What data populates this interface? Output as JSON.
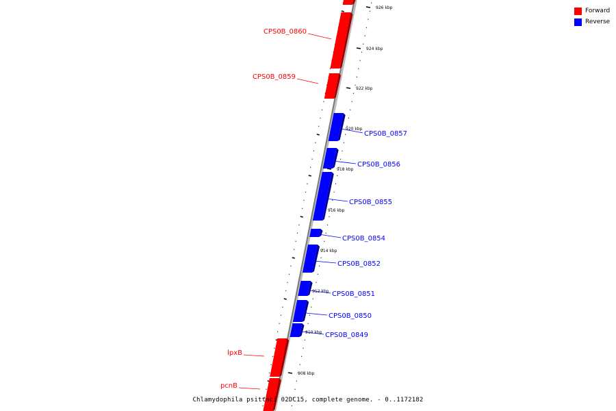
{
  "caption": "Chlamydophila psittaci 02DC15, complete genome. - 0..1172182",
  "legend": [
    {
      "label": "Forward",
      "color": "#ff0000"
    },
    {
      "label": "Reverse",
      "color": "#0000ff"
    }
  ],
  "scale_ticks": [
    "926 kbp",
    "924 kbp",
    "922 kbp",
    "920 kbp",
    "918 kbp",
    "916 kbp",
    "914 kbp",
    "912 kbp",
    "910 kbp",
    "908 kbp"
  ],
  "genes": [
    {
      "label": "",
      "strand": "forward"
    },
    {
      "label": "CPS0B_0860",
      "strand": "forward"
    },
    {
      "label": "CPS0B_0859",
      "strand": "forward"
    },
    {
      "label": "CPS0B_0857",
      "strand": "reverse"
    },
    {
      "label": "CPS0B_0856",
      "strand": "reverse"
    },
    {
      "label": "CPS0B_0855",
      "strand": "reverse"
    },
    {
      "label": "CPS0B_0854",
      "strand": "reverse"
    },
    {
      "label": "CPS0B_0852",
      "strand": "reverse"
    },
    {
      "label": "CPS0B_0851",
      "strand": "reverse"
    },
    {
      "label": "CPS0B_0850",
      "strand": "reverse"
    },
    {
      "label": "CPS0B_0849",
      "strand": "reverse"
    },
    {
      "label": "lpxB",
      "strand": "forward"
    },
    {
      "label": "pcnB",
      "strand": "forward"
    }
  ]
}
